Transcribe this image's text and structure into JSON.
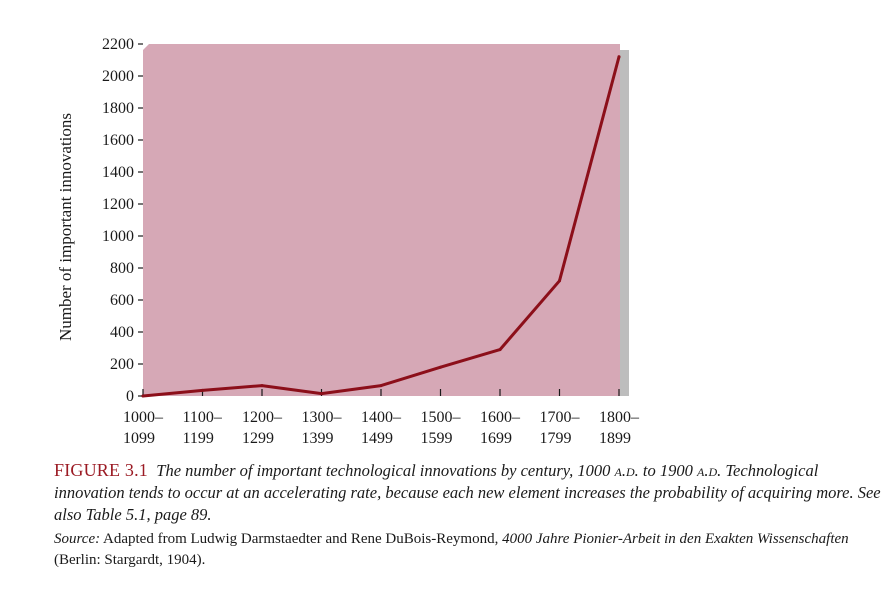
{
  "chart_data": {
    "type": "line",
    "title": "",
    "xlabel": "",
    "ylabel": "Number of important innovations",
    "ylim": [
      0,
      2200
    ],
    "yticks": [
      0,
      200,
      400,
      600,
      800,
      1000,
      1200,
      1400,
      1600,
      1800,
      2000,
      2200
    ],
    "categories": [
      [
        "1000–",
        "1099"
      ],
      [
        "1100–",
        "1199"
      ],
      [
        "1200–",
        "1299"
      ],
      [
        "1300–",
        "1399"
      ],
      [
        "1400–",
        "1499"
      ],
      [
        "1500–",
        "1599"
      ],
      [
        "1600–",
        "1699"
      ],
      [
        "1700–",
        "1799"
      ],
      [
        "1800–",
        "1899"
      ]
    ],
    "values": [
      0,
      35,
      65,
      15,
      65,
      180,
      290,
      720,
      2120
    ],
    "grid": false,
    "colors": {
      "plot_bg": "#d6a8b6",
      "line": "#8c0f1a",
      "shadow": "#bdbdbd"
    }
  },
  "caption": {
    "label": "FIGURE 3.1",
    "text_1": "The number of important technological innovations by century, 1000 ",
    "ad_1": "a.d.",
    "text_2": " to 1900 ",
    "ad_2": "a.d.",
    "text_3": " Technological innovation tends to occur at an accelerating rate, because each new element increases the probability of acquiring more. See also Table 5.1, page 89."
  },
  "source": {
    "label": "Source:",
    "text_1": " Adapted from Ludwig Darmstaedter and Rene DuBois-Reymond, ",
    "book": "4000 Jahre Pionier-Arbeit in den Exakten Wissenschaften",
    "text_2": " (Berlin: Stargardt, 1904)."
  }
}
